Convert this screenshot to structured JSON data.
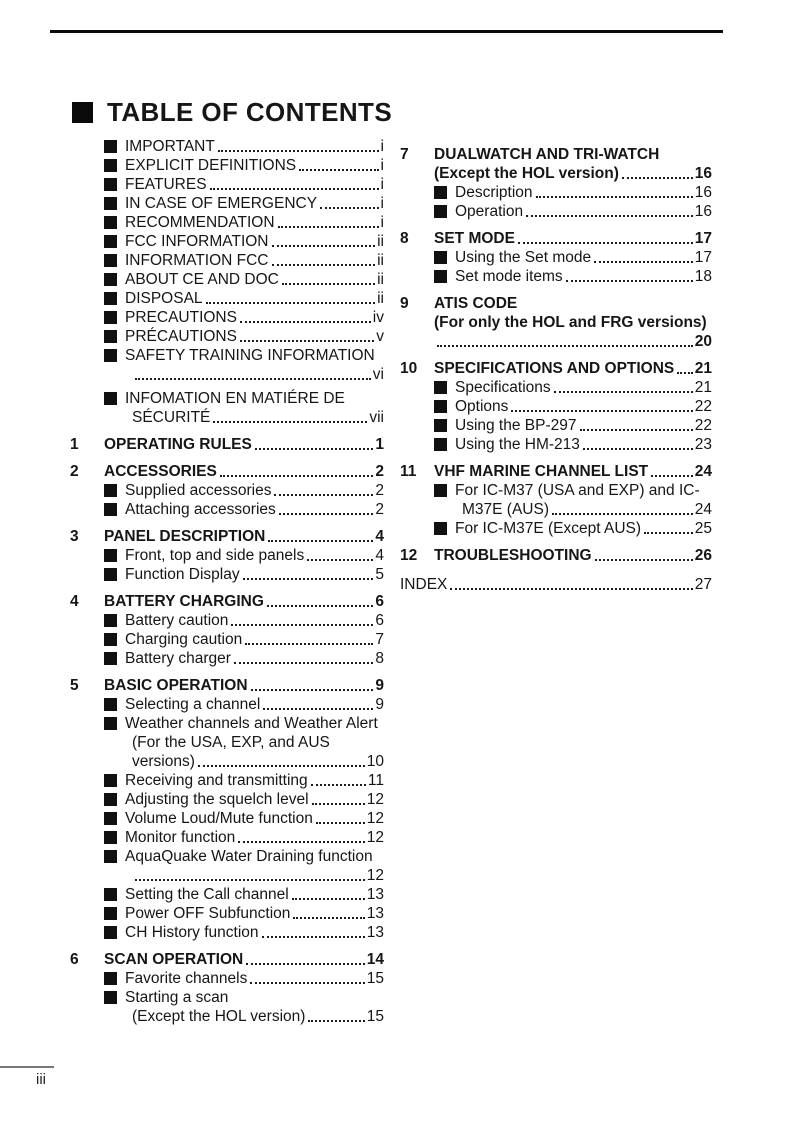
{
  "page": {
    "title": "TABLE OF CONTENTS",
    "footer_page_number": "iii"
  },
  "colors": {
    "text": "#161616",
    "rule": "#0a0a0a",
    "footer_rule": "#787878"
  },
  "toc": {
    "columns": [
      {
        "entries": [
          {
            "kind": "front",
            "lines": [
              {
                "text": "IMPORTANT",
                "page": "i"
              }
            ]
          },
          {
            "kind": "front",
            "lines": [
              {
                "text": "EXPLICIT DEFINITIONS",
                "page": "i"
              }
            ]
          },
          {
            "kind": "front",
            "lines": [
              {
                "text": "FEATURES",
                "page": "i"
              }
            ]
          },
          {
            "kind": "front",
            "lines": [
              {
                "text": "IN CASE OF EMERGENCY",
                "page": "i"
              }
            ]
          },
          {
            "kind": "front",
            "lines": [
              {
                "text": "RECOMMENDATION",
                "page": "i"
              }
            ]
          },
          {
            "kind": "front",
            "lines": [
              {
                "text": "FCC INFORMATION",
                "page": "ii"
              }
            ]
          },
          {
            "kind": "front",
            "lines": [
              {
                "text": "INFORMATION FCC",
                "page": "ii"
              }
            ]
          },
          {
            "kind": "front",
            "lines": [
              {
                "text": "ABOUT CE AND DOC",
                "page": "ii"
              }
            ]
          },
          {
            "kind": "front",
            "lines": [
              {
                "text": "DISPOSAL",
                "page": "ii"
              }
            ]
          },
          {
            "kind": "front",
            "lines": [
              {
                "text": "PRECAUTIONS",
                "page": "iv"
              }
            ]
          },
          {
            "kind": "front",
            "lines": [
              {
                "text": "PRÉCAUTIONS",
                "page": "v"
              }
            ]
          },
          {
            "kind": "front",
            "lines": [
              {
                "text": "SAFETY TRAINING INFORMATION"
              },
              {
                "text": "",
                "page": "vi"
              }
            ]
          },
          {
            "kind": "front",
            "gap": true,
            "lines": [
              {
                "text": "INFOMATION EN MATIÉRE DE"
              },
              {
                "text": "SÉCURITÉ",
                "page": "vii"
              }
            ]
          },
          {
            "kind": "section",
            "num": "1",
            "lines": [
              {
                "text": "OPERATING RULES",
                "page": "1"
              }
            ]
          },
          {
            "kind": "section",
            "num": "2",
            "lines": [
              {
                "text": "ACCESSORIES",
                "page": "2"
              }
            ]
          },
          {
            "kind": "sub",
            "lines": [
              {
                "text": "Supplied accessories",
                "page": "2"
              }
            ]
          },
          {
            "kind": "sub",
            "lines": [
              {
                "text": "Attaching accessories",
                "page": "2"
              }
            ]
          },
          {
            "kind": "section",
            "num": "3",
            "lines": [
              {
                "text": "PANEL DESCRIPTION",
                "page": "4"
              }
            ]
          },
          {
            "kind": "sub",
            "lines": [
              {
                "text": "Front, top and side panels",
                "page": "4"
              }
            ]
          },
          {
            "kind": "sub",
            "lines": [
              {
                "text": "Function Display",
                "page": "5"
              }
            ]
          },
          {
            "kind": "section",
            "num": "4",
            "lines": [
              {
                "text": "BATTERY CHARGING",
                "page": "6"
              }
            ]
          },
          {
            "kind": "sub",
            "lines": [
              {
                "text": "Battery caution",
                "page": "6"
              }
            ]
          },
          {
            "kind": "sub",
            "lines": [
              {
                "text": "Charging caution",
                "page": "7"
              }
            ]
          },
          {
            "kind": "sub",
            "lines": [
              {
                "text": "Battery charger",
                "page": "8"
              }
            ]
          },
          {
            "kind": "section",
            "num": "5",
            "lines": [
              {
                "text": "BASIC OPERATION",
                "page": "9"
              }
            ]
          },
          {
            "kind": "sub",
            "lines": [
              {
                "text": "Selecting a channel",
                "page": "9"
              }
            ]
          },
          {
            "kind": "sub",
            "lines": [
              {
                "text": "Weather channels and Weather Alert"
              },
              {
                "text": "(For the USA, EXP, and AUS"
              },
              {
                "text": "versions)",
                "page": "10"
              }
            ]
          },
          {
            "kind": "sub",
            "lines": [
              {
                "text": "Receiving and transmitting",
                "page": "11"
              }
            ]
          },
          {
            "kind": "sub",
            "lines": [
              {
                "text": "Adjusting the squelch level",
                "page": "12"
              }
            ]
          },
          {
            "kind": "sub",
            "lines": [
              {
                "text": "Volume Loud/Mute function",
                "page": "12"
              }
            ]
          },
          {
            "kind": "sub",
            "lines": [
              {
                "text": "Monitor function",
                "page": "12"
              }
            ]
          },
          {
            "kind": "sub",
            "lines": [
              {
                "text": "AquaQuake Water Draining function"
              },
              {
                "text": "",
                "page": "12"
              }
            ]
          },
          {
            "kind": "sub",
            "lines": [
              {
                "text": "Setting the Call channel",
                "page": "13"
              }
            ]
          },
          {
            "kind": "sub",
            "lines": [
              {
                "text": "Power OFF Subfunction",
                "page": "13"
              }
            ]
          },
          {
            "kind": "sub",
            "lines": [
              {
                "text": "CH History function",
                "page": "13"
              }
            ]
          },
          {
            "kind": "section",
            "num": "6",
            "lines": [
              {
                "text": "SCAN OPERATION",
                "page": "14"
              }
            ]
          },
          {
            "kind": "sub",
            "lines": [
              {
                "text": "Favorite channels",
                "page": "15"
              }
            ]
          },
          {
            "kind": "sub",
            "lines": [
              {
                "text": "Starting a scan"
              },
              {
                "text": "(Except the HOL version)",
                "page": "15"
              }
            ]
          }
        ]
      },
      {
        "entries": [
          {
            "kind": "section",
            "num": "7",
            "lines": [
              {
                "text": "DUALWATCH AND TRI-WATCH"
              },
              {
                "text": "(Except the HOL version)",
                "page": "16"
              }
            ]
          },
          {
            "kind": "sub",
            "lines": [
              {
                "text": "Description",
                "page": "16"
              }
            ]
          },
          {
            "kind": "sub",
            "lines": [
              {
                "text": "Operation",
                "page": "16"
              }
            ]
          },
          {
            "kind": "section",
            "num": "8",
            "lines": [
              {
                "text": "SET MODE",
                "page": "17"
              }
            ]
          },
          {
            "kind": "sub",
            "lines": [
              {
                "text": "Using the Set mode",
                "page": "17"
              }
            ]
          },
          {
            "kind": "sub",
            "lines": [
              {
                "text": "Set mode items",
                "page": "18"
              }
            ]
          },
          {
            "kind": "section",
            "num": "9",
            "lines": [
              {
                "text": "ATIS CODE"
              },
              {
                "text": "(For only the HOL and FRG versions)"
              },
              {
                "text": "",
                "page": "20"
              }
            ]
          },
          {
            "kind": "section",
            "num": "10",
            "lines": [
              {
                "text": "SPECIFICATIONS AND OPTIONS",
                "page": "21"
              }
            ]
          },
          {
            "kind": "sub",
            "lines": [
              {
                "text": "Specifications",
                "page": "21"
              }
            ]
          },
          {
            "kind": "sub",
            "lines": [
              {
                "text": "Options",
                "page": "22"
              }
            ]
          },
          {
            "kind": "sub",
            "lines": [
              {
                "text": "Using the BP-297",
                "page": "22"
              }
            ]
          },
          {
            "kind": "sub",
            "lines": [
              {
                "text": "Using the HM-213",
                "page": "23"
              }
            ]
          },
          {
            "kind": "section",
            "num": "11",
            "lines": [
              {
                "text": "VHF MARINE CHANNEL LIST",
                "page": "24"
              }
            ]
          },
          {
            "kind": "sub",
            "lines": [
              {
                "text": "For IC-M37 (USA and EXP) and IC-"
              },
              {
                "text": "M37E (AUS)",
                "page": "24"
              }
            ]
          },
          {
            "kind": "sub",
            "lines": [
              {
                "text": "For IC-M37E (Except AUS)",
                "page": "25"
              }
            ]
          },
          {
            "kind": "section",
            "num": "12",
            "lines": [
              {
                "text": "TROUBLESHOOTING",
                "page": "26"
              }
            ]
          },
          {
            "kind": "index",
            "lines": [
              {
                "text": "INDEX",
                "page": "27"
              }
            ]
          }
        ]
      }
    ]
  }
}
